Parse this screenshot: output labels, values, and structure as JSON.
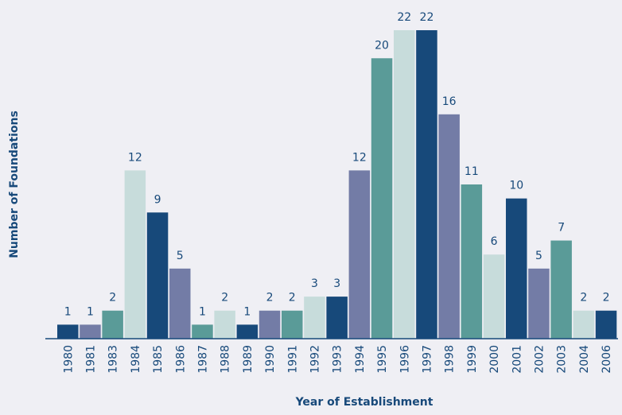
{
  "chart_data": {
    "type": "bar",
    "x_label": "Year of Establishment",
    "y_label": "Number of Foundations",
    "categories": [
      "1980",
      "1981",
      "1983",
      "1984",
      "1985",
      "1986",
      "1987",
      "1988",
      "1989",
      "1990",
      "1991",
      "1992",
      "1993",
      "1994",
      "1995",
      "1996",
      "1997",
      "1998",
      "1999",
      "2000",
      "2001",
      "2002",
      "2003",
      "2004",
      "2006"
    ],
    "values": [
      1,
      1,
      2,
      12,
      9,
      5,
      1,
      2,
      1,
      2,
      2,
      3,
      3,
      12,
      20,
      22,
      22,
      16,
      11,
      6,
      10,
      5,
      7,
      2,
      2
    ],
    "colors": [
      "#17497a",
      "#737ca6",
      "#5a9b98",
      "#c7dcdb"
    ],
    "ylim": [
      0,
      22
    ]
  }
}
